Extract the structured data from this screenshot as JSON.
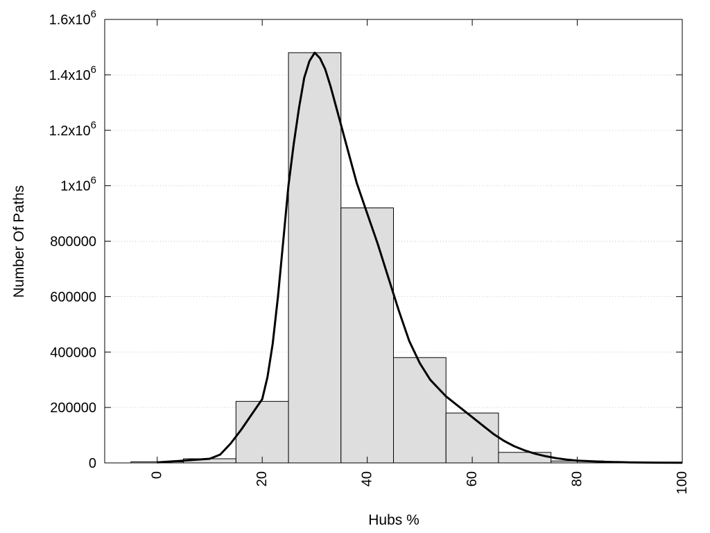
{
  "chart_data": {
    "type": "bar",
    "xlabel": "Hubs %",
    "ylabel": "Number Of Paths",
    "xlim": [
      -10,
      100
    ],
    "ylim": [
      0,
      1600000
    ],
    "grid": true,
    "x_ticks": [
      0,
      20,
      40,
      60,
      80,
      100
    ],
    "x_tick_labels": [
      "0",
      "20",
      "40",
      "60",
      "80",
      "100"
    ],
    "y_ticks": [
      0,
      200000,
      400000,
      600000,
      800000,
      1000000,
      1200000,
      1400000,
      1600000
    ],
    "y_tick_labels": [
      {
        "base": "0",
        "sup": ""
      },
      {
        "base": "200000",
        "sup": ""
      },
      {
        "base": "400000",
        "sup": ""
      },
      {
        "base": "600000",
        "sup": ""
      },
      {
        "base": "800000",
        "sup": ""
      },
      {
        "base": "1x10",
        "sup": "6"
      },
      {
        "base": "1.2x10",
        "sup": "6"
      },
      {
        "base": "1.4x10",
        "sup": "6"
      },
      {
        "base": "1.6x10",
        "sup": "6"
      }
    ],
    "bin_width": 10,
    "bins": [
      {
        "center": 0,
        "value": 4000
      },
      {
        "center": 10,
        "value": 15000
      },
      {
        "center": 20,
        "value": 222000
      },
      {
        "center": 30,
        "value": 1480000
      },
      {
        "center": 40,
        "value": 920000
      },
      {
        "center": 50,
        "value": 380000
      },
      {
        "center": 60,
        "value": 180000
      },
      {
        "center": 70,
        "value": 38000
      },
      {
        "center": 80,
        "value": 7000
      },
      {
        "center": 90,
        "value": 2000
      }
    ],
    "density_curve": {
      "x": [
        0,
        5,
        10,
        12,
        14,
        16,
        18,
        20,
        21,
        22,
        23,
        24,
        25,
        26,
        27,
        28,
        29,
        30,
        31,
        32,
        33,
        34,
        35,
        36,
        37,
        38,
        40,
        42,
        44,
        46,
        48,
        50,
        52,
        55,
        58,
        60,
        62,
        64,
        66,
        68,
        70,
        72,
        74,
        76,
        78,
        80,
        85,
        90,
        95,
        100
      ],
      "y": [
        2000,
        8000,
        15000,
        30000,
        70000,
        120000,
        175000,
        230000,
        310000,
        430000,
        600000,
        800000,
        1000000,
        1150000,
        1280000,
        1390000,
        1450000,
        1480000,
        1460000,
        1420000,
        1360000,
        1290000,
        1220000,
        1150000,
        1080000,
        1010000,
        900000,
        790000,
        670000,
        550000,
        440000,
        360000,
        300000,
        240000,
        195000,
        165000,
        135000,
        105000,
        80000,
        60000,
        45000,
        33000,
        24000,
        17000,
        12000,
        8000,
        4000,
        2000,
        1000,
        500
      ]
    }
  }
}
